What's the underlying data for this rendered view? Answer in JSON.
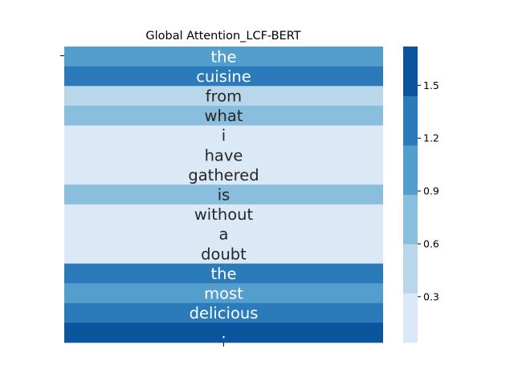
{
  "chart_data": {
    "type": "heatmap",
    "title": "Global Attention_LCF-BERT",
    "xlabel": "",
    "ylabel": "",
    "x_tick_labels": [
      ""
    ],
    "y_tick_labels": [
      ""
    ],
    "rows": [
      {
        "token": "the",
        "value": 1.05
      },
      {
        "token": "cuisine",
        "value": 1.3
      },
      {
        "token": "from",
        "value": 0.45
      },
      {
        "token": "what",
        "value": 0.7
      },
      {
        "token": "i",
        "value": 0.1
      },
      {
        "token": "have",
        "value": 0.1
      },
      {
        "token": "gathered",
        "value": 0.15
      },
      {
        "token": "is",
        "value": 0.7
      },
      {
        "token": "without",
        "value": 0.1
      },
      {
        "token": "a",
        "value": 0.1
      },
      {
        "token": "doubt",
        "value": 0.1
      },
      {
        "token": "the",
        "value": 1.3
      },
      {
        "token": "most",
        "value": 1.05
      },
      {
        "token": "delicious",
        "value": 1.3
      },
      {
        "token": ".",
        "value": 1.6
      }
    ],
    "colorbar": {
      "vmin": 0.04,
      "vmax": 1.72,
      "ticks": [
        0.3,
        0.6,
        0.9,
        1.2,
        1.5
      ],
      "tick_labels": [
        "0.3",
        "0.6",
        "0.9",
        "1.2",
        "1.5"
      ],
      "colors": [
        "#dbe9f6",
        "#bad6eb",
        "#89bedc",
        "#539ecd",
        "#2b7bba",
        "#0b559f"
      ]
    }
  }
}
